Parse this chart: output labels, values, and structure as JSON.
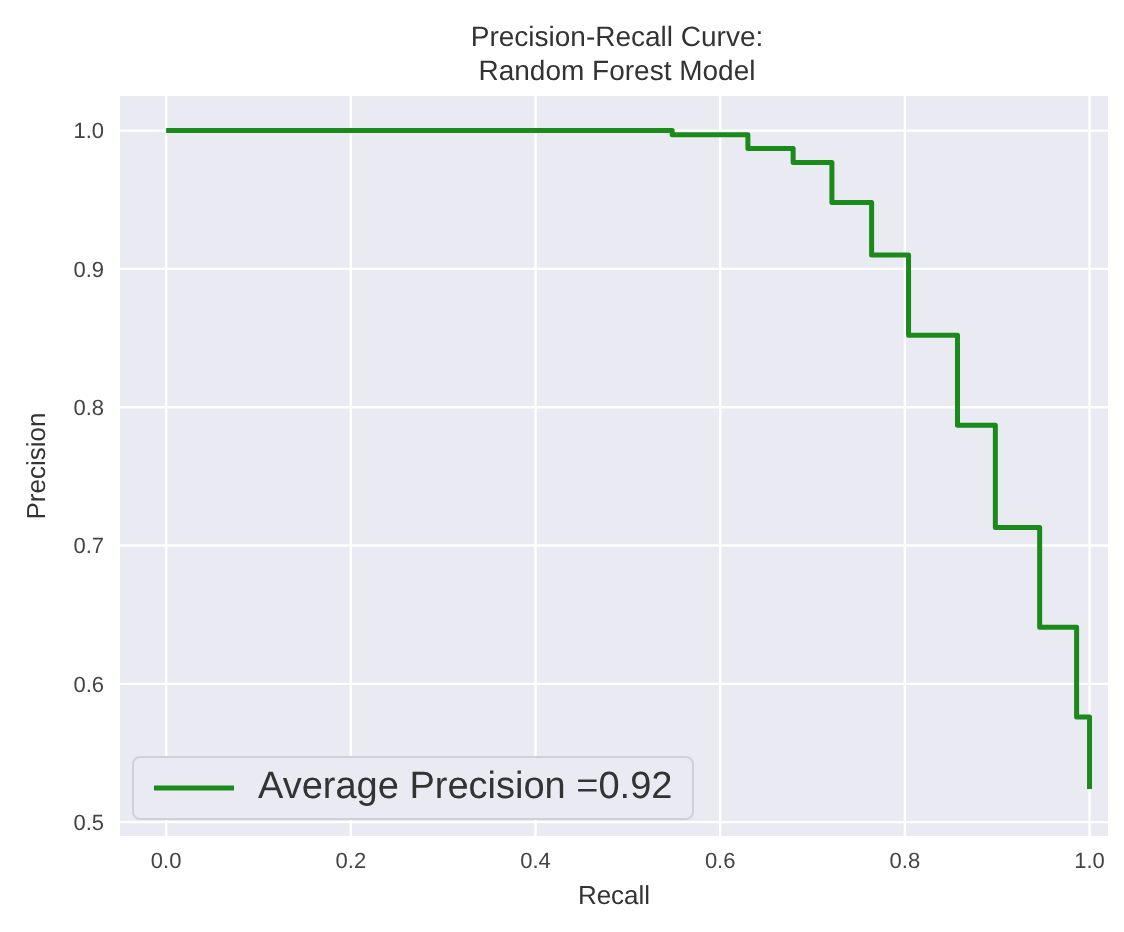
{
  "chart_data": {
    "type": "step",
    "title": "Precision-Recall Curve:\nRandom Forest Model",
    "xlabel": "Recall",
    "ylabel": "Precision",
    "series": [
      {
        "name": "Average Precision =0.92",
        "color": "#1a8a1a",
        "x": [
          0,
          0.548,
          0.63,
          0.679,
          0.721,
          0.764,
          0.804,
          0.857,
          0.898,
          0.946,
          0.986,
          1.0
        ],
        "values": [
          1.0,
          0.997,
          0.987,
          0.977,
          0.948,
          0.91,
          0.852,
          0.787,
          0.713,
          0.641,
          0.576,
          0.524
        ]
      }
    ],
    "xlim": [
      -0.05,
      1.02
    ],
    "ylim": [
      0.49,
      1.025
    ],
    "xticks": [
      {
        "value": 0,
        "label": "0.0"
      },
      0.2,
      0.4,
      0.6,
      0.8,
      {
        "value": 1,
        "label": "1.0"
      }
    ],
    "yticks": [
      {
        "value": 0.5,
        "label": "0.5"
      },
      0.6,
      0.7,
      0.8,
      0.9,
      {
        "value": 1,
        "label": "1.0"
      }
    ],
    "grid": true,
    "legend": "bottom left",
    "marker": "none",
    "line_style": "solid"
  }
}
